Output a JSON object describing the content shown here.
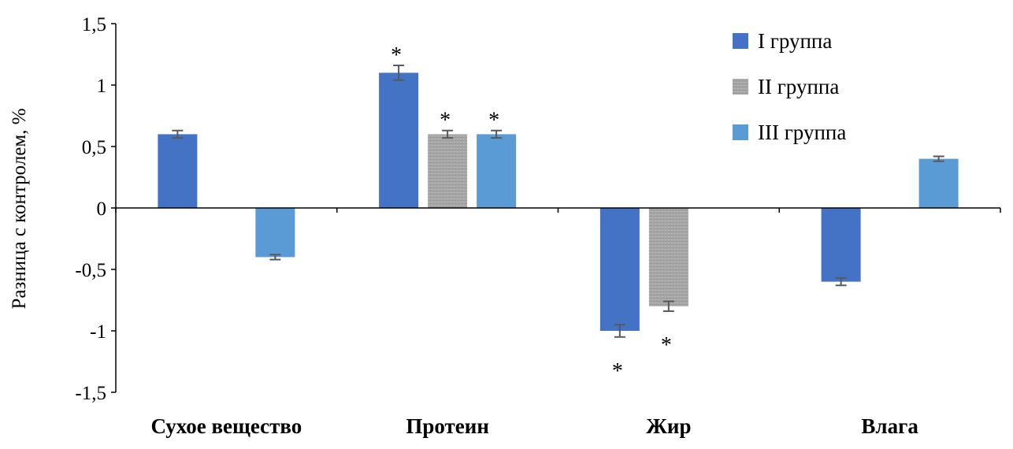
{
  "chart_data": {
    "type": "bar",
    "title": "",
    "xlabel": "",
    "ylabel": "Разница с контролем, %",
    "ylim": [
      -1.5,
      1.5
    ],
    "yticks": [
      1.5,
      1,
      0.5,
      0,
      -0.5,
      -1,
      -1.5
    ],
    "ytick_labels": [
      "1,5",
      "1",
      "0,5",
      "0",
      "-0,5",
      "-1",
      "-1,5"
    ],
    "categories": [
      "Сухое вещество",
      "Протеин",
      "Жир",
      "Влага"
    ],
    "series": [
      {
        "name": "I группа",
        "color": "#4472C4",
        "values": [
          0.6,
          1.1,
          -1.0,
          -0.6
        ],
        "errors": [
          0.03,
          0.06,
          0.05,
          0.03
        ],
        "stars": [
          false,
          true,
          true,
          false
        ]
      },
      {
        "name": "II группа",
        "color": "#A6A6A6",
        "values": [
          0.0,
          0.6,
          -0.8,
          0.0
        ],
        "errors": [
          0.0,
          0.03,
          0.04,
          0.0
        ],
        "stars": [
          false,
          true,
          true,
          false
        ]
      },
      {
        "name": "III группа",
        "color": "#5B9BD5",
        "values": [
          -0.4,
          0.6,
          0.0,
          0.4
        ],
        "errors": [
          0.02,
          0.03,
          0.0,
          0.02
        ],
        "stars": [
          false,
          true,
          false,
          false
        ]
      }
    ],
    "significance_marker": "*",
    "legend_position": "top-right",
    "grid": false
  }
}
